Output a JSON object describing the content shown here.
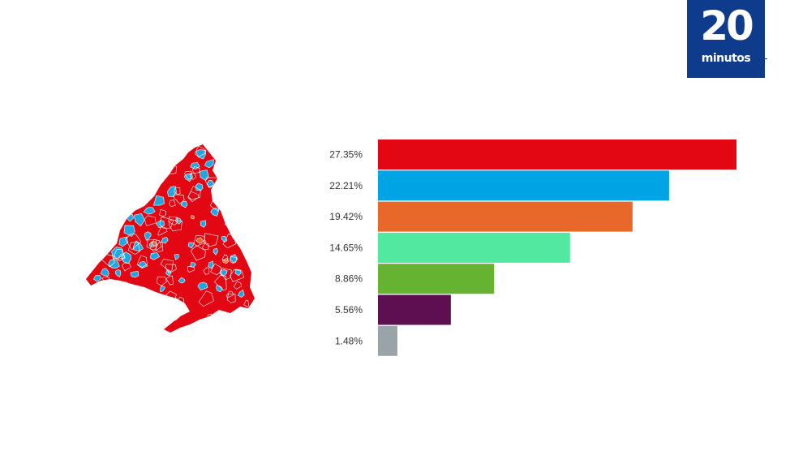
{
  "logo": {
    "number": "20",
    "word": "minutos"
  },
  "chart_data": {
    "type": "bar",
    "orientation": "horizontal",
    "values": [
      27.35,
      22.21,
      19.42,
      14.65,
      8.86,
      5.56,
      1.48
    ],
    "labels": [
      "27.35%",
      "22.21%",
      "19.42%",
      "14.65%",
      "8.86%",
      "5.56%",
      "1.48%"
    ],
    "colors": [
      "#e30613",
      "#00a3e4",
      "#e8682a",
      "#52e8a0",
      "#66b332",
      "#5e0f52",
      "#9aa3a8"
    ],
    "xlim": [
      0,
      27.35
    ],
    "grid": false
  },
  "map_colors": {
    "red": "#e30613",
    "blue": "#1ea7e1",
    "orange": "#e8682a"
  }
}
